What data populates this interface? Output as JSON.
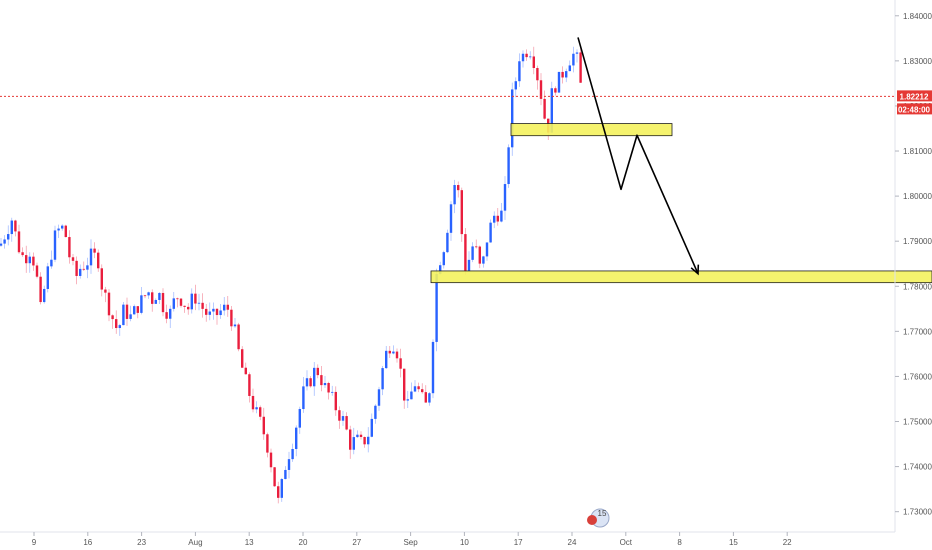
{
  "chart_data": {
    "type": "candlestick",
    "title": "",
    "xlabel": "",
    "ylabel": "",
    "ylim": [
      1.7215,
      1.8435
    ],
    "y_ticks": [
      "1.84000",
      "1.83000",
      "1.82000",
      "1.81000",
      "1.80000",
      "1.79000",
      "1.78000",
      "1.77000",
      "1.76000",
      "1.75000",
      "1.74000",
      "1.73000"
    ],
    "x_ticks": [
      "9",
      "16",
      "23",
      "Aug",
      "13",
      "20",
      "27",
      "Sep",
      "10",
      "17",
      "24",
      "Oct",
      "8",
      "15",
      "22"
    ],
    "grid": false,
    "current_price": "1.82212",
    "countdown": "02:48:00",
    "event_badge": "15",
    "colors": {
      "up": "#2962ff",
      "down": "#e91e3d",
      "current_price_line": "#e53935",
      "support_zone_fill": "#f4f25e",
      "support_zone_border": "#1f1f1f",
      "projection": "#000000",
      "axis_text": "#555555"
    },
    "close_path": [
      [
        0,
        1.789
      ],
      [
        6,
        1.792
      ],
      [
        12,
        1.795
      ],
      [
        18,
        1.789
      ],
      [
        24,
        1.786
      ],
      [
        30,
        1.788
      ],
      [
        36,
        1.784
      ],
      [
        40,
        1.774
      ],
      [
        44,
        1.779
      ],
      [
        50,
        1.786
      ],
      [
        56,
        1.792
      ],
      [
        62,
        1.793
      ],
      [
        66,
        1.791
      ],
      [
        70,
        1.786
      ],
      [
        76,
        1.782
      ],
      [
        80,
        1.784
      ],
      [
        86,
        1.785
      ],
      [
        92,
        1.787
      ],
      [
        98,
        1.786
      ],
      [
        102,
        1.78
      ],
      [
        108,
        1.776
      ],
      [
        114,
        1.772
      ],
      [
        118,
        1.77
      ],
      [
        124,
        1.775
      ],
      [
        130,
        1.773
      ],
      [
        136,
        1.775
      ],
      [
        142,
        1.777
      ],
      [
        148,
        1.779
      ],
      [
        152,
        1.777
      ],
      [
        158,
        1.779
      ],
      [
        164,
        1.775
      ],
      [
        170,
        1.774
      ],
      [
        176,
        1.778
      ],
      [
        182,
        1.777
      ],
      [
        188,
        1.775
      ],
      [
        194,
        1.778
      ],
      [
        200,
        1.776
      ],
      [
        206,
        1.774
      ],
      [
        212,
        1.773
      ],
      [
        218,
        1.774
      ],
      [
        224,
        1.775
      ],
      [
        228,
        1.775
      ],
      [
        234,
        1.771
      ],
      [
        238,
        1.766
      ],
      [
        242,
        1.762
      ],
      [
        248,
        1.757
      ],
      [
        254,
        1.753
      ],
      [
        260,
        1.75
      ],
      [
        266,
        1.746
      ],
      [
        270,
        1.742
      ],
      [
        274,
        1.737
      ],
      [
        278,
        1.732
      ],
      [
        282,
        1.736
      ],
      [
        286,
        1.741
      ],
      [
        292,
        1.745
      ],
      [
        298,
        1.751
      ],
      [
        304,
        1.757
      ],
      [
        310,
        1.759
      ],
      [
        316,
        1.762
      ],
      [
        320,
        1.76
      ],
      [
        326,
        1.757
      ],
      [
        332,
        1.755
      ],
      [
        338,
        1.752
      ],
      [
        344,
        1.75
      ],
      [
        350,
        1.745
      ],
      [
        356,
        1.746
      ],
      [
        362,
        1.745
      ],
      [
        368,
        1.747
      ],
      [
        374,
        1.752
      ],
      [
        380,
        1.759
      ],
      [
        386,
        1.765
      ],
      [
        392,
        1.768
      ],
      [
        398,
        1.765
      ],
      [
        404,
        1.756
      ],
      [
        408,
        1.753
      ],
      [
        414,
        1.759
      ],
      [
        418,
        1.757
      ],
      [
        424,
        1.754
      ],
      [
        428,
        1.753
      ],
      [
        432,
        1.765
      ],
      [
        436,
        1.782
      ],
      [
        440,
        1.786
      ],
      [
        444,
        1.789
      ],
      [
        448,
        1.794
      ],
      [
        452,
        1.8
      ],
      [
        456,
        1.804
      ],
      [
        460,
        1.798
      ],
      [
        464,
        1.784
      ],
      [
        468,
        1.785
      ],
      [
        472,
        1.789
      ],
      [
        476,
        1.788
      ],
      [
        480,
        1.784
      ],
      [
        484,
        1.786
      ],
      [
        488,
        1.792
      ],
      [
        492,
        1.794
      ],
      [
        496,
        1.797
      ],
      [
        500,
        1.795
      ],
      [
        504,
        1.798
      ],
      [
        508,
        1.81
      ],
      [
        512,
        1.822
      ],
      [
        516,
        1.826
      ],
      [
        520,
        1.832
      ],
      [
        524,
        1.831
      ],
      [
        528,
        1.833
      ],
      [
        532,
        1.832
      ],
      [
        536,
        1.828
      ],
      [
        540,
        1.824
      ],
      [
        544,
        1.818
      ],
      [
        548,
        1.815
      ],
      [
        552,
        1.823
      ],
      [
        556,
        1.825
      ],
      [
        560,
        1.826
      ],
      [
        564,
        1.828
      ],
      [
        568,
        1.83
      ],
      [
        572,
        1.831
      ],
      [
        576,
        1.832
      ],
      [
        580,
        1.825
      ],
      [
        584,
        1.822
      ]
    ],
    "zones": [
      {
        "x_start": 511,
        "x_end": 672,
        "y_low": 1.8134,
        "y_high": 1.8161
      },
      {
        "x_start": 431,
        "x_end": 932,
        "y_low": 1.7808,
        "y_high": 1.7834
      }
    ],
    "projection_path": [
      [
        578,
        1.8352
      ],
      [
        621,
        1.8015
      ],
      [
        637,
        1.8135
      ],
      [
        698,
        1.7828
      ]
    ]
  }
}
